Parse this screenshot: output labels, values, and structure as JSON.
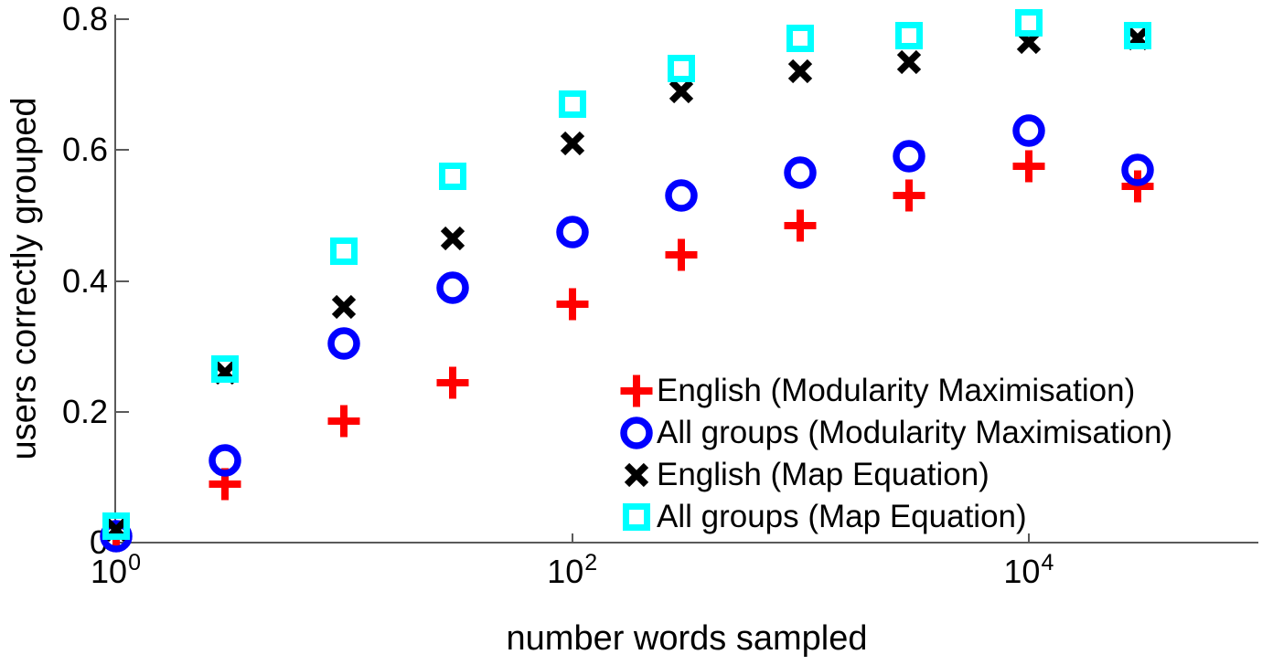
{
  "chart_data": {
    "type": "scatter",
    "x_scale": "log",
    "title": "",
    "xlabel": "number words sampled",
    "ylabel": "users correctly grouped",
    "x": [
      1,
      3,
      10,
      30,
      100,
      300,
      1000,
      3000,
      10000,
      30000
    ],
    "series": [
      {
        "name": "English (Modularity Maximisation)",
        "marker": "plus",
        "color": "#ff0000",
        "values": [
          0.01,
          0.09,
          0.185,
          0.245,
          0.365,
          0.44,
          0.485,
          0.53,
          0.575,
          0.545
        ]
      },
      {
        "name": "All groups (Modularity Maximisation)",
        "marker": "circle",
        "color": "#0000ff",
        "values": [
          0.01,
          0.125,
          0.305,
          0.39,
          0.475,
          0.53,
          0.565,
          0.59,
          0.63,
          0.57
        ]
      },
      {
        "name": "English (Map Equation)",
        "marker": "x",
        "color": "#000000",
        "values": [
          0.02,
          0.26,
          0.36,
          0.465,
          0.61,
          0.69,
          0.72,
          0.735,
          0.765,
          0.77
        ]
      },
      {
        "name": "All groups (Map Equation)",
        "marker": "square",
        "color": "#00ffff",
        "values": [
          0.025,
          0.265,
          0.445,
          0.56,
          0.67,
          0.725,
          0.77,
          0.775,
          0.795,
          0.775
        ]
      }
    ],
    "ylim": [
      0,
      0.8
    ],
    "y_ticks": [
      0,
      0.2,
      0.4,
      0.6,
      0.8
    ],
    "y_tick_labels": [
      "0",
      "0.2",
      "0.4",
      "0.6",
      "0.8"
    ],
    "x_ticks": [
      {
        "value": 1,
        "base": "10",
        "exp": "0"
      },
      {
        "value": 100,
        "base": "10",
        "exp": "2"
      },
      {
        "value": 10000,
        "base": "10",
        "exp": "4"
      }
    ],
    "legend_position": "lower right inside",
    "grid": false,
    "axis_color": "#5a5a5a"
  }
}
